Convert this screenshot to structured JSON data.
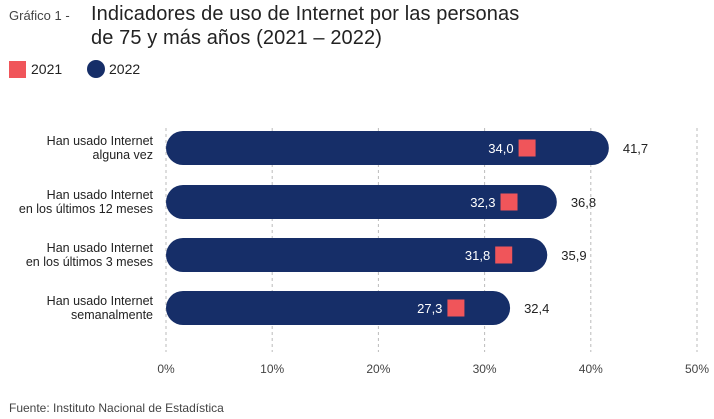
{
  "title": {
    "prefix": "Gráfico 1 -",
    "line1": "Indicadores de uso de Internet por las personas",
    "line2": "de 75 y más años (2021 – 2022)"
  },
  "source": "Fuente: Instituto Nacional de Estadística",
  "colors": {
    "series2021": "#f0555a",
    "series2022": "#162e68",
    "grid": "#bbbbbb",
    "text": "#222222"
  },
  "chart_data": {
    "type": "bar",
    "orientation": "horizontal",
    "title": "Indicadores de uso de Internet por las personas de 75 y más años (2021 – 2022)",
    "categories": [
      [
        "Han usado Internet",
        "alguna vez"
      ],
      [
        "Han usado Internet",
        "en los últimos 12 meses"
      ],
      [
        "Han usado Internet",
        "en los últimos 3 meses"
      ],
      [
        "Han usado Internet",
        "semanalmente"
      ]
    ],
    "series": [
      {
        "name": "2021",
        "marker": "square",
        "values": [
          34.0,
          32.3,
          31.8,
          27.3
        ],
        "labels": [
          "34,0",
          "32,3",
          "31,8",
          "27,3"
        ]
      },
      {
        "name": "2022",
        "marker": "rounded-bar",
        "values": [
          41.7,
          36.8,
          35.9,
          32.4
        ],
        "labels": [
          "41,7",
          "36,8",
          "35,9",
          "32,4"
        ]
      }
    ],
    "xlim": [
      0,
      50
    ],
    "xticks": [
      0,
      10,
      20,
      30,
      40,
      50
    ],
    "xtick_labels": [
      "0%",
      "10%",
      "20%",
      "30%",
      "40%",
      "50%"
    ],
    "grid": "vertical dashed",
    "legend_position": "top-left"
  }
}
